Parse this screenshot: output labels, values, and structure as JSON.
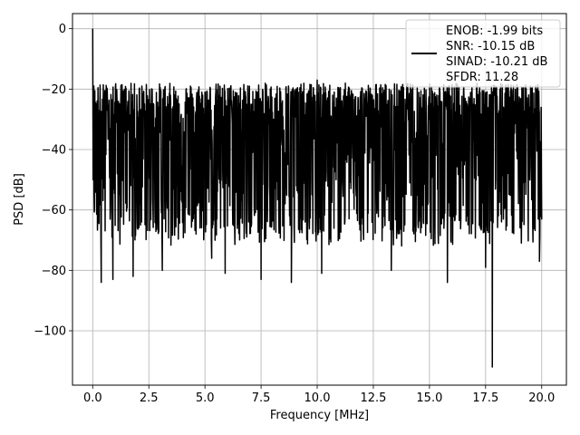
{
  "chart_data": {
    "type": "line",
    "title": "",
    "xlabel": "Frequency [MHz]",
    "ylabel": "PSD [dB]",
    "xlim": [
      -0.9,
      21.1
    ],
    "ylim": [
      -118,
      5
    ],
    "xticks": [
      0.0,
      2.5,
      5.0,
      7.5,
      10.0,
      12.5,
      15.0,
      17.5,
      20.0
    ],
    "xtick_labels": [
      "0.0",
      "2.5",
      "5.0",
      "7.5",
      "10.0",
      "12.5",
      "15.0",
      "17.5",
      "20.0"
    ],
    "yticks": [
      0,
      -20,
      -40,
      -60,
      -80,
      -100
    ],
    "ytick_labels": [
      "0",
      "−20",
      "−40",
      "−60",
      "−80",
      "−100"
    ],
    "grid": true,
    "legend_position": "top-right",
    "legend_text": [
      "ENOB: -1.99 bits",
      "SNR: -10.15 dB",
      "SINAD: -10.21 dB",
      "SFDR: 11.28"
    ],
    "line_color": "#000000",
    "grid_color": "#b0b0b0",
    "series": [
      {
        "name": "ENOB: -1.99 bits",
        "noise_band": {
          "x_start": 0.0,
          "x_end": 20.0,
          "upper_db": -30,
          "lower_db": -68
        },
        "points": [
          {
            "x": 0.0,
            "y": 0
          },
          {
            "x": 0.02,
            "y": -50
          },
          {
            "x": 0.05,
            "y": -19
          },
          {
            "x": 0.3,
            "y": -27
          },
          {
            "x": 0.38,
            "y": -84
          },
          {
            "x": 0.9,
            "y": -83
          },
          {
            "x": 1.8,
            "y": -82
          },
          {
            "x": 3.1,
            "y": -80
          },
          {
            "x": 5.0,
            "y": -21
          },
          {
            "x": 5.3,
            "y": -76
          },
          {
            "x": 5.9,
            "y": -81
          },
          {
            "x": 7.05,
            "y": -25
          },
          {
            "x": 7.35,
            "y": -21
          },
          {
            "x": 7.5,
            "y": -83
          },
          {
            "x": 8.85,
            "y": -84
          },
          {
            "x": 10.0,
            "y": -17
          },
          {
            "x": 10.2,
            "y": -81
          },
          {
            "x": 13.3,
            "y": -80
          },
          {
            "x": 15.0,
            "y": -30
          },
          {
            "x": 15.8,
            "y": -84
          },
          {
            "x": 17.5,
            "y": -79
          },
          {
            "x": 17.8,
            "y": -112
          },
          {
            "x": 19.9,
            "y": -77
          }
        ]
      }
    ]
  }
}
